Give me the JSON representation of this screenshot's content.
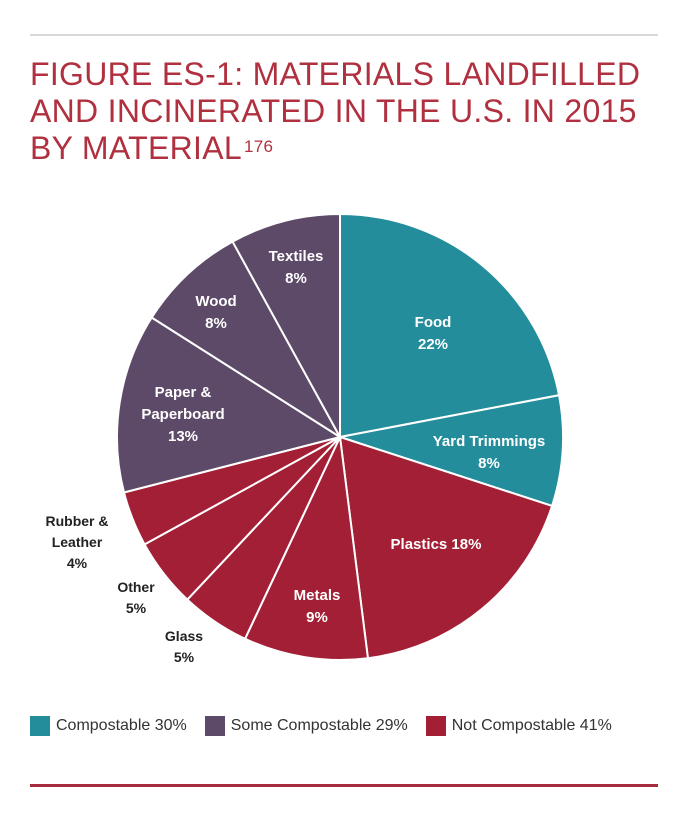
{
  "figure": {
    "title": "FIGURE ES-1: MATERIALS LANDFILLED AND INCINERATED IN THE U.S. IN 2015 BY MATERIAL",
    "footnote": "176"
  },
  "colors": {
    "compostable": "#248d9c",
    "some_compostable": "#5d4a68",
    "not_compostable": "#a31f35",
    "title": "#b0303f",
    "rule": "#a52a3c"
  },
  "chart_data": {
    "type": "pie",
    "title": "FIGURE ES-1: MATERIALS LANDFILLED AND INCINERATED IN THE U.S. IN 2015 BY MATERIAL",
    "slices": [
      {
        "label": "Food",
        "value": 22,
        "group": "compostable",
        "text": "22%"
      },
      {
        "label": "Yard Trimmings",
        "value": 8,
        "group": "compostable",
        "text": "8%"
      },
      {
        "label": "Plastics",
        "value": 18,
        "group": "not_compostable",
        "text": "18%"
      },
      {
        "label": "Metals",
        "value": 9,
        "group": "not_compostable",
        "text": "9%"
      },
      {
        "label": "Glass",
        "value": 5,
        "group": "not_compostable",
        "text": "5%"
      },
      {
        "label": "Other",
        "value": 5,
        "group": "not_compostable",
        "text": "5%"
      },
      {
        "label": "Rubber & Leather",
        "value": 4,
        "group": "not_compostable",
        "text": "4%"
      },
      {
        "label": "Paper & Paperboard",
        "value": 13,
        "group": "some_compostable",
        "text": "13%"
      },
      {
        "label": "Wood",
        "value": 8,
        "group": "some_compostable",
        "text": "8%"
      },
      {
        "label": "Textiles",
        "value": 8,
        "group": "some_compostable",
        "text": "8%"
      }
    ],
    "legend": [
      {
        "label": "Compostable 30%",
        "group": "compostable"
      },
      {
        "label": "Some Compostable 29%",
        "group": "some_compostable"
      },
      {
        "label": "Not Compostable 41%",
        "group": "not_compostable"
      }
    ],
    "legend_position": "bottom"
  }
}
